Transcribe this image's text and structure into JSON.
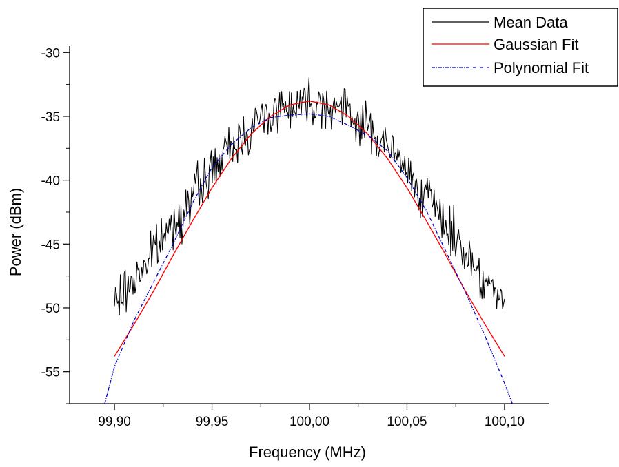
{
  "chart_data": {
    "type": "line",
    "title": "",
    "xlabel": "Frequency (MHz)",
    "ylabel": "Power (dBm)",
    "xlim": [
      99.877,
      100.123
    ],
    "ylim": [
      -57.5,
      -29.5
    ],
    "x_ticks": [
      {
        "value": 99.9,
        "label": "99,90"
      },
      {
        "value": 99.95,
        "label": "99,95"
      },
      {
        "value": 100.0,
        "label": "100,00"
      },
      {
        "value": 100.05,
        "label": "100,05"
      },
      {
        "value": 100.1,
        "label": "100,10"
      }
    ],
    "y_ticks": [
      {
        "value": -30,
        "label": "-30"
      },
      {
        "value": -35,
        "label": "-35"
      },
      {
        "value": -40,
        "label": "-40"
      },
      {
        "value": -45,
        "label": "-45"
      },
      {
        "value": -50,
        "label": "-50"
      },
      {
        "value": -55,
        "label": "-55"
      }
    ],
    "grid": false,
    "legend_position": "top-right",
    "series": [
      {
        "name": "Mean Data",
        "color": "#000000",
        "style": "solid",
        "x_range": [
          99.9,
          100.1
        ],
        "n_points": 400,
        "noise_amplitude_db": 0.9,
        "model": "gaussian",
        "model_params": {
          "y0": -60.0,
          "amplitude": 26.2,
          "center": 100.0,
          "sigma": 0.073
        }
      },
      {
        "name": "Gaussian Fit",
        "color": "#ff0000",
        "style": "solid",
        "x": [
          99.9,
          99.91,
          99.92,
          99.93,
          99.94,
          99.95,
          99.96,
          99.97,
          99.98,
          99.99,
          100.0,
          100.01,
          100.02,
          100.03,
          100.04,
          100.05,
          100.06,
          100.07,
          100.08,
          100.09,
          100.1
        ],
        "y": [
          -53.8,
          -51.3,
          -48.7,
          -45.9,
          -43.2,
          -40.6,
          -38.3,
          -36.4,
          -35.0,
          -34.1,
          -33.8,
          -34.1,
          -35.0,
          -36.4,
          -38.3,
          -40.6,
          -43.2,
          -45.9,
          -48.7,
          -51.3,
          -53.8
        ]
      },
      {
        "name": "Polynomial Fit",
        "color": "#0000cc",
        "style": "dash-dot",
        "x": [
          99.895,
          99.9,
          99.91,
          99.92,
          99.93,
          99.94,
          99.95,
          99.96,
          99.97,
          99.98,
          99.99,
          100.0,
          100.01,
          100.02,
          100.03,
          100.04,
          100.05,
          100.06,
          100.07,
          100.08,
          100.09,
          100.1,
          100.104
        ],
        "y": [
          -57.5,
          -54.6,
          -51.0,
          -48.0,
          -45.0,
          -41.8,
          -39.0,
          -37.2,
          -35.9,
          -35.1,
          -34.9,
          -34.8,
          -35.0,
          -35.7,
          -36.5,
          -37.7,
          -39.8,
          -42.4,
          -45.6,
          -48.8,
          -52.2,
          -55.9,
          -57.5
        ]
      }
    ]
  }
}
